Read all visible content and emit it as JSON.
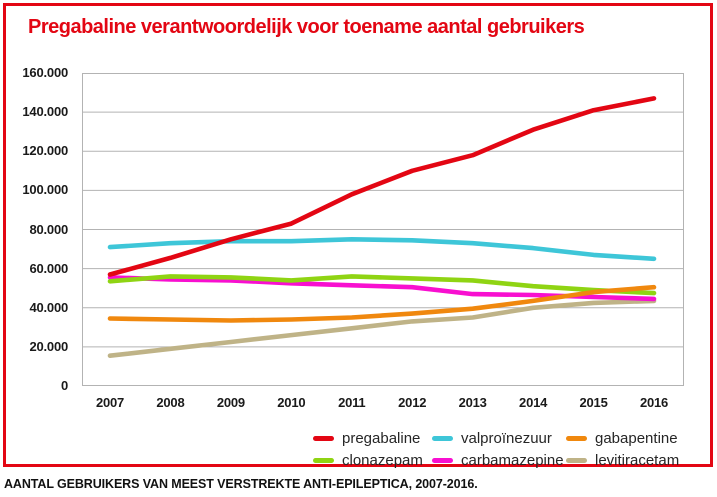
{
  "header": {
    "title": "Pregabaline verantwoordelijk voor toename aantal gebruikers",
    "accent_color": "#e30613"
  },
  "footer": {
    "caption": "AANTAL GEBRUIKERS VAN MEEST VERSTREKTE ANTI-EPILEPTICA, 2007-2016."
  },
  "chart_data": {
    "type": "line",
    "title": "Pregabaline verantwoordelijk voor toename aantal gebruikers",
    "x": [
      2007,
      2008,
      2009,
      2010,
      2011,
      2012,
      2013,
      2014,
      2015,
      2016
    ],
    "xlabel": "",
    "ylabel": "",
    "ylim": [
      0,
      160000
    ],
    "ytick_step": 20000,
    "ytick_labels": [
      "0",
      "20.000",
      "40.000",
      "60.000",
      "80.000",
      "100.000",
      "120.000",
      "140.000",
      "160.000"
    ],
    "grid": "horizontal",
    "gridline_color": "#b3b3b3",
    "legend_position": "bottom",
    "series": [
      {
        "name": "pregabaline",
        "color": "#e30613",
        "values": [
          57000,
          65500,
          75000,
          83000,
          98000,
          110000,
          118000,
          131000,
          141000,
          147000
        ]
      },
      {
        "name": "valproïnezuur",
        "color": "#3ec6d8",
        "values": [
          71000,
          73000,
          74000,
          74000,
          75000,
          74500,
          73000,
          70500,
          67000,
          65000
        ]
      },
      {
        "name": "gabapentine",
        "color": "#f0880e",
        "values": [
          34500,
          34000,
          33500,
          34000,
          35000,
          37000,
          39500,
          43500,
          48000,
          50500
        ]
      },
      {
        "name": "clonazepam",
        "color": "#8fd413",
        "values": [
          53500,
          56000,
          55500,
          54000,
          56000,
          55000,
          54000,
          51000,
          49000,
          47500
        ]
      },
      {
        "name": "carbamazepine",
        "color": "#f80fd0",
        "values": [
          55500,
          54500,
          54000,
          52500,
          51500,
          50500,
          47000,
          46500,
          45500,
          44500
        ]
      },
      {
        "name": "levitiracetam",
        "color": "#bfb387",
        "values": [
          15500,
          19000,
          22500,
          26000,
          29500,
          33000,
          35000,
          40000,
          42500,
          43500
        ]
      }
    ],
    "draw_order": [
      "valproïnezuur",
      "levitiracetam",
      "carbamazepine",
      "clonazepam",
      "gabapentine",
      "pregabaline"
    ]
  }
}
